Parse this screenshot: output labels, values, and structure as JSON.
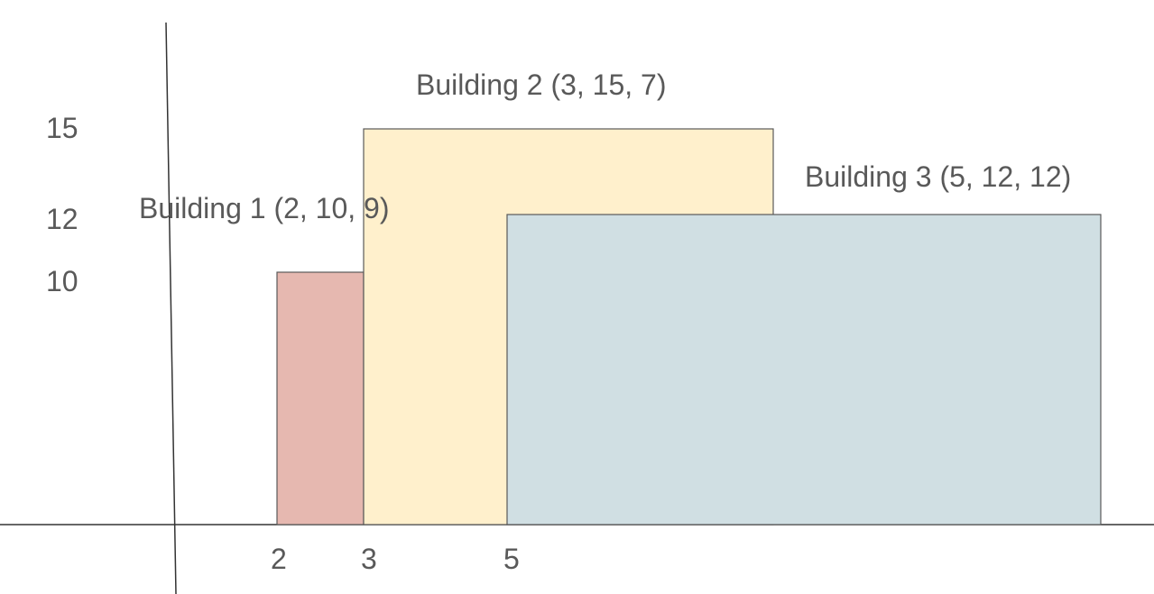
{
  "diagram": {
    "y_ticks": [
      "15",
      "12",
      "10"
    ],
    "x_ticks": [
      "2",
      "3",
      "5"
    ],
    "buildings": [
      {
        "label": "Building 1 (2, 10, 9)",
        "color": "#e6b8b0",
        "stroke": "#595959"
      },
      {
        "label": "Building 2 (3, 15, 7)",
        "color": "#fff0cc",
        "stroke": "#595959"
      },
      {
        "label": "Building 3 (5, 12, 12)",
        "color": "#d0dfe3",
        "stroke": "#595959"
      }
    ],
    "axis_color": "#333333",
    "text_color": "#595959"
  }
}
